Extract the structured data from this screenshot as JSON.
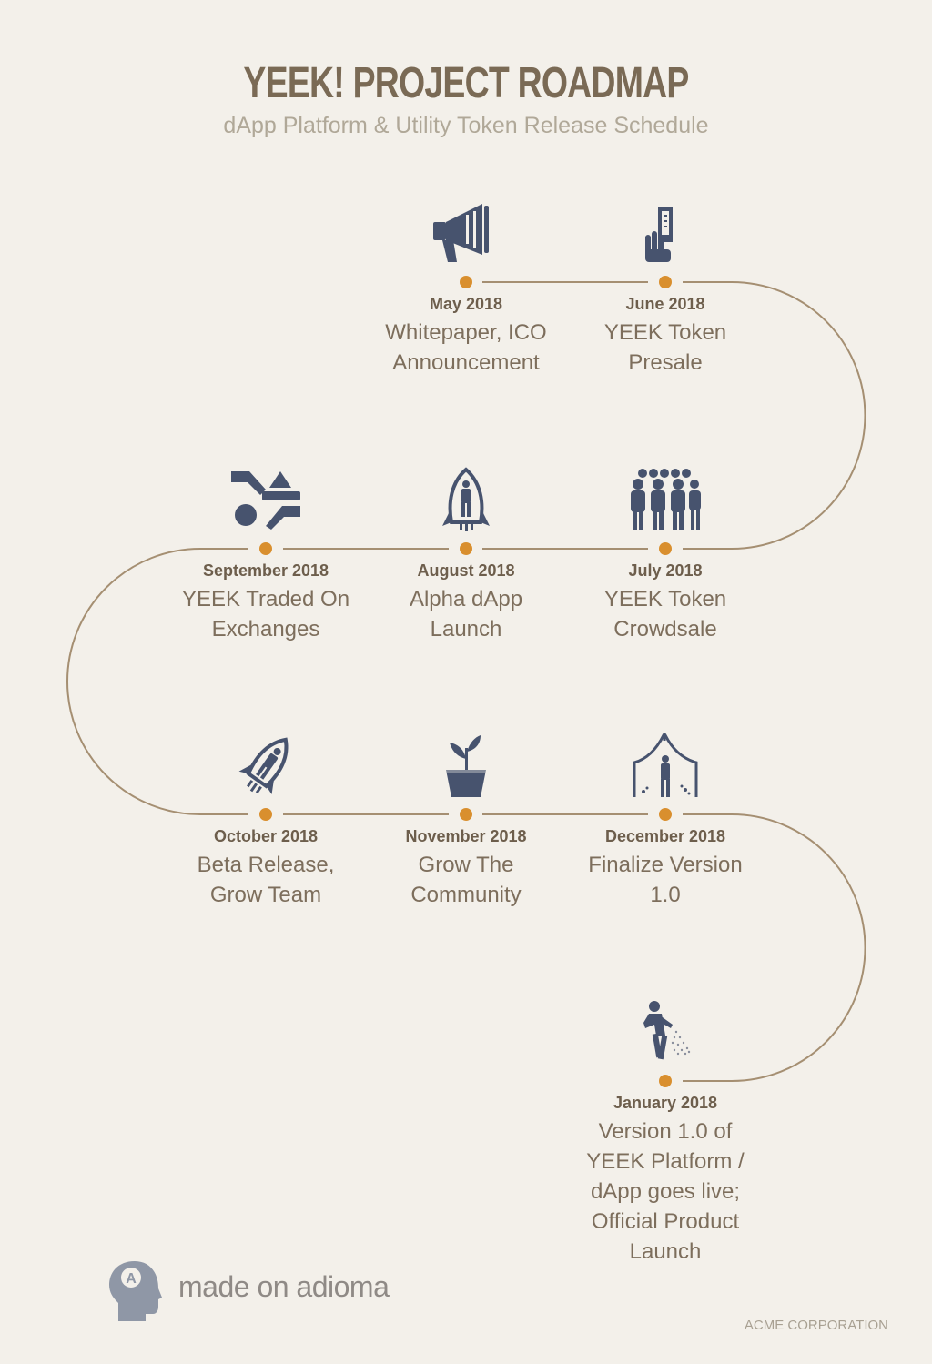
{
  "header": {
    "title": "YEEK! PROJECT ROADMAP",
    "subtitle": "dApp Platform & Utility Token Release Schedule"
  },
  "colors": {
    "background": "#f3f0ea",
    "path": "#a58f72",
    "dot": "#d98f2e",
    "icon": "#47536e"
  },
  "milestones": [
    {
      "date": "May 2018",
      "label_lines": [
        "Whitepaper, ICO",
        "Announcement"
      ],
      "icon": "megaphone-icon"
    },
    {
      "date": "June 2018",
      "label_lines": [
        "YEEK Token",
        "Presale"
      ],
      "icon": "hand-ticket-icon"
    },
    {
      "date": "July 2018",
      "label_lines": [
        "YEEK Token",
        "Crowdsale"
      ],
      "icon": "crowd-icon"
    },
    {
      "date": "August 2018",
      "label_lines": [
        "Alpha dApp",
        "Launch"
      ],
      "icon": "rocket-person-icon"
    },
    {
      "date": "September 2018",
      "label_lines": [
        "YEEK Traded On",
        "Exchanges"
      ],
      "icon": "exchange-hands-icon"
    },
    {
      "date": "October 2018",
      "label_lines": [
        "Beta Release,",
        "Grow Team"
      ],
      "icon": "rocket-launch-icon"
    },
    {
      "date": "November 2018",
      "label_lines": [
        "Grow The",
        "Community"
      ],
      "icon": "plant-pot-icon"
    },
    {
      "date": "December 2018",
      "label_lines": [
        "Finalize Version",
        "1.0"
      ],
      "icon": "stage-presenter-icon"
    },
    {
      "date": "January 2018",
      "label_lines": [
        "Version 1.0 of",
        "YEEK Platform /",
        "dApp goes live;",
        "Official Product",
        "Launch"
      ],
      "icon": "person-spraying-icon"
    }
  ],
  "footer": {
    "brand": "made on adioma",
    "logo_letter": "A",
    "corporation": "ACME CORPORATION"
  }
}
